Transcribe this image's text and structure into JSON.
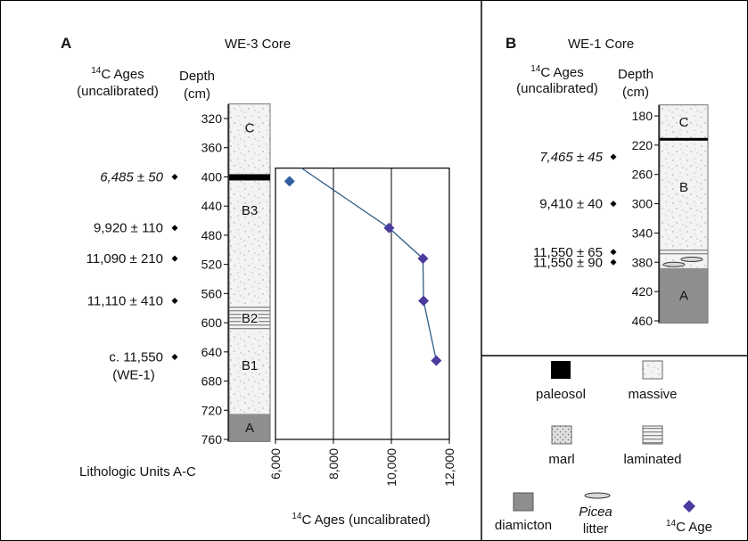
{
  "panel_a": {
    "letter": "A",
    "core_title": "WE-3 Core",
    "ages_header_line1": "C Ages",
    "ages_header_sup": "14",
    "ages_header_line2": "(uncalibrated)",
    "depth_header_line1": "Depth",
    "depth_header_line2": "(cm)",
    "depth_ticks": [
      "320",
      "360",
      "400",
      "440",
      "480",
      "520",
      "560",
      "600",
      "640",
      "680",
      "720",
      "760"
    ],
    "units": [
      {
        "label": "C",
        "top_depth": 300,
        "bottom_depth": 400,
        "pattern": "massive"
      },
      {
        "label": "B3",
        "top_depth": 400,
        "bottom_depth": 575,
        "pattern": "massive"
      },
      {
        "label": "B2",
        "top_depth": 575,
        "bottom_depth": 612,
        "pattern": "laminated"
      },
      {
        "label": "B1",
        "top_depth": 612,
        "bottom_depth": 725,
        "pattern": "massive"
      },
      {
        "label": "A",
        "top_depth": 725,
        "bottom_depth": 763,
        "pattern": "diamicton"
      }
    ],
    "paleosol_depth": 400,
    "dates": [
      {
        "text": "6,485 ± 50",
        "italic": true,
        "depth": 400
      },
      {
        "text": "9,920 ± 110",
        "italic": false,
        "depth": 470
      },
      {
        "text": "11,090 ± 210",
        "italic": false,
        "depth": 512
      },
      {
        "text": "11,110 ± 410",
        "italic": false,
        "depth": 570
      },
      {
        "text": "c. 11,550",
        "note": "(WE-1)",
        "italic": false,
        "depth": 647
      }
    ],
    "lithologic_label": "Lithologic Units A-C"
  },
  "chart_data": {
    "type": "line",
    "x": [
      6485,
      9920,
      11090,
      11110,
      11550
    ],
    "y": [
      406,
      470,
      512,
      570,
      652
    ],
    "xlabel_sup": "14",
    "xlabel": "C Ages (uncalibrated)",
    "x_ticks": [
      "6,000",
      "8,000",
      "10,000",
      "12,000"
    ],
    "xlim": [
      6000,
      12000
    ],
    "y_top_depth": 388,
    "y_bottom_depth": 760,
    "line_start": [
      6900,
      388
    ],
    "grid": true,
    "marker_colors": [
      "#2f5f9e",
      "#4b3b9e",
      "#4b3b9e",
      "#4b3b9e",
      "#4b3b9e"
    ],
    "line_color": "#2c5e8a"
  },
  "panel_b": {
    "letter": "B",
    "core_title": "WE-1 Core",
    "ages_header_line1": "C Ages",
    "ages_header_sup": "14",
    "ages_header_line2": "(uncalibrated)",
    "depth_header_line1": "Depth",
    "depth_header_line2": "(cm)",
    "depth_ticks": [
      "180",
      "220",
      "260",
      "300",
      "340",
      "380",
      "420",
      "460"
    ],
    "units": [
      {
        "label": "C",
        "top_depth": 165,
        "bottom_depth": 212,
        "pattern": "massive"
      },
      {
        "label": "B",
        "top_depth": 212,
        "bottom_depth": 362,
        "pattern": "massive"
      },
      {
        "label": "",
        "top_depth": 362,
        "bottom_depth": 372,
        "pattern": "laminated"
      },
      {
        "label": "",
        "top_depth": 372,
        "bottom_depth": 388,
        "pattern": "massive"
      },
      {
        "label": "A",
        "top_depth": 388,
        "bottom_depth": 463,
        "pattern": "diamicton"
      }
    ],
    "paleosol_depth": 212,
    "picea_depths": [
      376,
      383
    ],
    "dates": [
      {
        "text": "7,465 ± 45",
        "italic": true,
        "depth": 236
      },
      {
        "text": "9,410 ± 40",
        "italic": false,
        "depth": 300
      },
      {
        "text": "11,550 ± 65",
        "italic": false,
        "depth": 366
      },
      {
        "text": "11,550 ± 90",
        "italic": false,
        "depth": 380
      }
    ]
  },
  "legend": {
    "paleosol": "paleosol",
    "massive": "massive",
    "marl": "marl",
    "laminated": "laminated",
    "diamicton": "diamicton",
    "picea_line1": "Picea",
    "picea_line2": "litter",
    "age_sup": "14",
    "age_label": "C Age"
  }
}
